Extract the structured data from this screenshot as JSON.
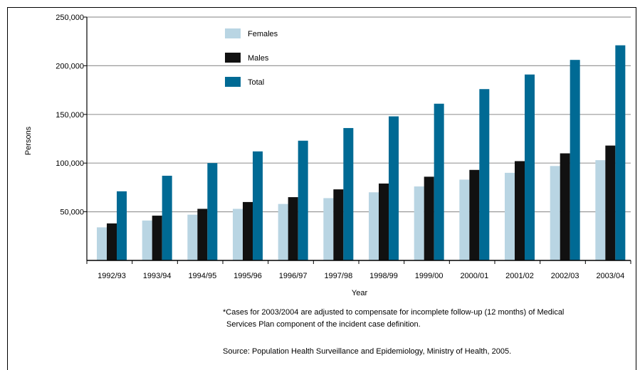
{
  "chart_data": {
    "type": "bar",
    "title": "",
    "xlabel": "Year",
    "ylabel": "Persons",
    "ylim": [
      0,
      250000
    ],
    "yticks": [
      50000,
      100000,
      150000,
      200000,
      250000
    ],
    "ytick_labels": [
      "50,000",
      "100,000",
      "150,000",
      "200,000",
      "250,000"
    ],
    "grid": true,
    "legend_position": "top-left",
    "categories": [
      "1992/93",
      "1993/94",
      "1994/95",
      "1995/96",
      "1996/97",
      "1997/98",
      "1998/99",
      "1999/00",
      "2000/01",
      "2001/02",
      "2002/03",
      "2003/04"
    ],
    "series": [
      {
        "name": "Females",
        "color": "#b9d5e3",
        "values": [
          34000,
          41000,
          47000,
          53000,
          58000,
          64000,
          70000,
          76000,
          83000,
          90000,
          97000,
          103000
        ]
      },
      {
        "name": "Males",
        "color": "#111111",
        "values": [
          38000,
          46000,
          53000,
          60000,
          65000,
          73000,
          79000,
          86000,
          93000,
          102000,
          110000,
          118000
        ]
      },
      {
        "name": "Total",
        "color": "#006a94",
        "values": [
          71000,
          87000,
          100000,
          112000,
          123000,
          136000,
          148000,
          161000,
          176000,
          191000,
          206000,
          221000
        ]
      }
    ]
  },
  "footnotes": {
    "note_line1": "*Cases for 2003/2004 are adjusted to compensate for incomplete follow-up (12 months) of Medical",
    "note_line2": "Services Plan component of the incident case definition.",
    "source": "Source: Population Health Surveillance and Epidemiology, Ministry of Health, 2005."
  }
}
